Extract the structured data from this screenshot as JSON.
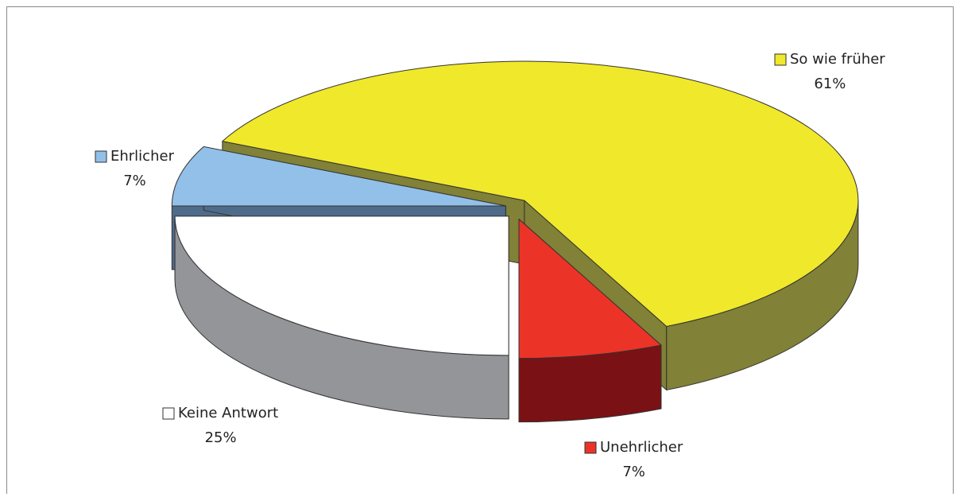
{
  "chart_data": {
    "type": "pie3d",
    "categories": [
      "Keine Antwort",
      "Ehrlicher",
      "So wie früher",
      "Unehrlicher"
    ],
    "values": [
      25,
      7,
      61,
      7
    ],
    "value_labels": [
      "25%",
      "7%",
      "61%",
      "7%"
    ],
    "colors": [
      "#ffffff",
      "#92c0e8",
      "#f0e82a",
      "#ec3328"
    ],
    "side_colors": [
      "#949599",
      "#4f6b8a",
      "#818137",
      "#7a1114"
    ]
  }
}
